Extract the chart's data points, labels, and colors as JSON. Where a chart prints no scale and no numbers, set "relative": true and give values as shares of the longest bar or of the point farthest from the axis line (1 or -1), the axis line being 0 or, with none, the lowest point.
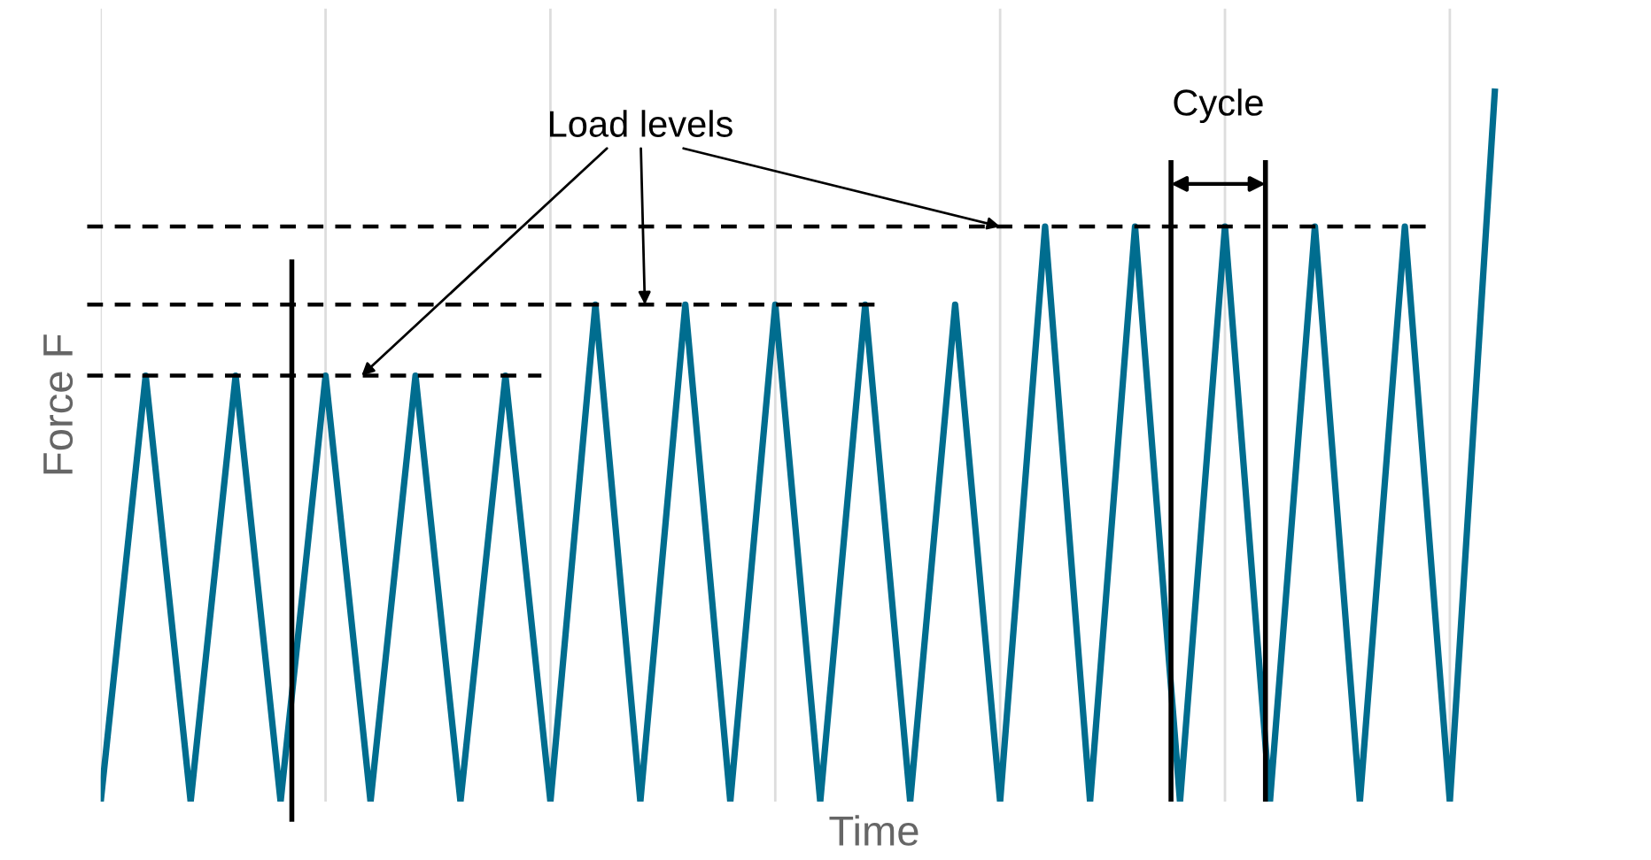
{
  "chart_data": {
    "type": "line",
    "relative": true,
    "xlabel": "Time",
    "ylabel": "Force F",
    "categories": [
      null,
      null,
      null,
      null,
      null,
      null,
      null,
      null,
      null,
      null,
      null,
      null,
      null,
      null,
      null,
      null,
      null,
      null,
      null,
      null,
      null,
      null,
      null,
      null,
      null,
      null,
      null,
      null,
      null,
      null,
      null,
      null
    ],
    "grid": "x",
    "series": [
      {
        "color": "#006d8f",
        "values": [
          0,
          0.6,
          0,
          0.6,
          0,
          0.6,
          0,
          0.6,
          0,
          0.6,
          0,
          0.7,
          0,
          0.7,
          0,
          0.7,
          0,
          0.7,
          0,
          0.7,
          0,
          0.81,
          0,
          0.81,
          0,
          0.81,
          0,
          0.81,
          0,
          0.81,
          0,
          1
        ]
      }
    ],
    "ref_lines": [
      {
        "axis": "y",
        "value": 0.6,
        "color": "#000000",
        "line_style": "dashed"
      },
      {
        "axis": "y",
        "value": 0.7,
        "color": "#000000",
        "line_style": "dashed"
      },
      {
        "axis": "y",
        "value": 0.81,
        "color": "#000000",
        "line_style": "dashed"
      }
    ],
    "annotations": [
      "Load levels",
      "Cycle"
    ]
  }
}
